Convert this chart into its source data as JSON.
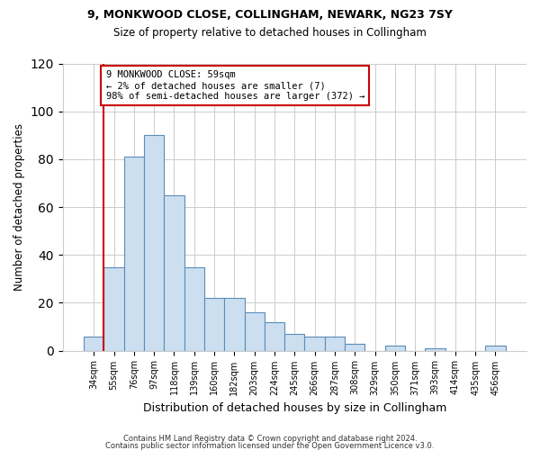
{
  "title_line1": "9, MONKWOOD CLOSE, COLLINGHAM, NEWARK, NG23 7SY",
  "title_line2": "Size of property relative to detached houses in Collingham",
  "xlabel": "Distribution of detached houses by size in Collingham",
  "ylabel": "Number of detached properties",
  "bar_labels": [
    "34sqm",
    "55sqm",
    "76sqm",
    "97sqm",
    "118sqm",
    "139sqm",
    "160sqm",
    "182sqm",
    "203sqm",
    "224sqm",
    "245sqm",
    "266sqm",
    "287sqm",
    "308sqm",
    "329sqm",
    "350sqm",
    "371sqm",
    "393sqm",
    "414sqm",
    "435sqm",
    "456sqm"
  ],
  "bar_heights": [
    6,
    35,
    81,
    90,
    65,
    35,
    22,
    22,
    16,
    12,
    7,
    6,
    6,
    3,
    0,
    2,
    0,
    1,
    0,
    0,
    2
  ],
  "bar_color": "#ccdff0",
  "bar_edge_color": "#5b8db8",
  "annotation_title": "9 MONKWOOD CLOSE: 59sqm",
  "annotation_line2": "← 2% of detached houses are smaller (7)",
  "annotation_line3": "98% of semi-detached houses are larger (372) →",
  "annotation_box_color": "#ffffff",
  "annotation_box_edge": "#cc0000",
  "red_line_color": "#cc0000",
  "ylim": [
    0,
    120
  ],
  "yticks": [
    0,
    20,
    40,
    60,
    80,
    100,
    120
  ],
  "footer_line1": "Contains HM Land Registry data © Crown copyright and database right 2024.",
  "footer_line2": "Contains public sector information licensed under the Open Government Licence v3.0.",
  "bg_color": "#ffffff",
  "plot_bg_color": "#ffffff",
  "grid_color": "#cccccc"
}
